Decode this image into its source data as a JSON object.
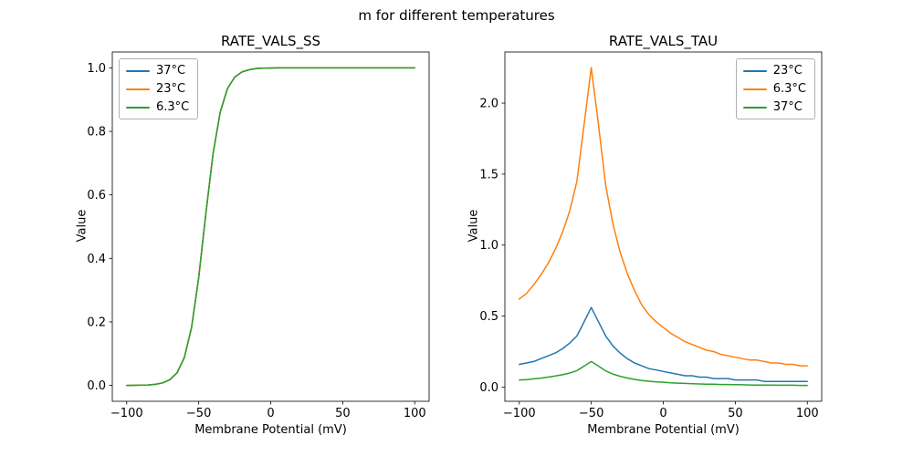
{
  "figure": {
    "suptitle": "m for different temperatures"
  },
  "colors": {
    "blue": "#1f77b4",
    "orange": "#ff7f0e",
    "green": "#2ca02c",
    "axes": "#000000"
  },
  "chart_data": [
    {
      "type": "line",
      "title": "RATE_VALS_SS",
      "xlabel": "Membrane Potential (mV)",
      "ylabel": "Value",
      "legend_position": "upper-left",
      "grid": false,
      "xlim": [
        -110,
        110
      ],
      "ylim": [
        -0.05,
        1.05
      ],
      "xticks": [
        -100,
        -50,
        0,
        50,
        100
      ],
      "xtick_labels": [
        "−100",
        "−50",
        "0",
        "50",
        "100"
      ],
      "yticks": [
        0.0,
        0.2,
        0.4,
        0.6,
        0.8,
        1.0
      ],
      "ytick_labels": [
        "0.0",
        "0.2",
        "0.4",
        "0.6",
        "0.8",
        "1.0"
      ],
      "x": [
        -100,
        -95,
        -90,
        -85,
        -80,
        -75,
        -70,
        -65,
        -60,
        -55,
        -50,
        -45,
        -40,
        -35,
        -30,
        -25,
        -20,
        -15,
        -10,
        -5,
        0,
        5,
        10,
        15,
        20,
        25,
        30,
        35,
        40,
        45,
        50,
        55,
        60,
        65,
        70,
        75,
        80,
        85,
        90,
        95,
        100
      ],
      "series": [
        {
          "name": "37°C",
          "color": "#1f77b4",
          "values": [
            0.0001,
            0.0003,
            0.0007,
            0.0015,
            0.0035,
            0.008,
            0.018,
            0.04,
            0.088,
            0.182,
            0.339,
            0.542,
            0.731,
            0.862,
            0.935,
            0.971,
            0.987,
            0.994,
            0.998,
            0.999,
            0.9995,
            1.0,
            1.0,
            1.0,
            1.0,
            1.0,
            1.0,
            1.0,
            1.0,
            1.0,
            1.0,
            1.0,
            1.0,
            1.0,
            1.0,
            1.0,
            1.0,
            1.0,
            1.0,
            1.0,
            1.0
          ]
        },
        {
          "name": "23°C",
          "color": "#ff7f0e",
          "values": [
            0.0001,
            0.0003,
            0.0007,
            0.0015,
            0.0035,
            0.008,
            0.018,
            0.04,
            0.088,
            0.182,
            0.339,
            0.542,
            0.731,
            0.862,
            0.935,
            0.971,
            0.987,
            0.994,
            0.998,
            0.999,
            0.9995,
            1.0,
            1.0,
            1.0,
            1.0,
            1.0,
            1.0,
            1.0,
            1.0,
            1.0,
            1.0,
            1.0,
            1.0,
            1.0,
            1.0,
            1.0,
            1.0,
            1.0,
            1.0,
            1.0,
            1.0
          ]
        },
        {
          "name": "6.3°C",
          "color": "#2ca02c",
          "values": [
            0.0001,
            0.0003,
            0.0007,
            0.0015,
            0.0035,
            0.008,
            0.018,
            0.04,
            0.088,
            0.182,
            0.339,
            0.542,
            0.731,
            0.862,
            0.935,
            0.971,
            0.987,
            0.994,
            0.998,
            0.999,
            0.9995,
            1.0,
            1.0,
            1.0,
            1.0,
            1.0,
            1.0,
            1.0,
            1.0,
            1.0,
            1.0,
            1.0,
            1.0,
            1.0,
            1.0,
            1.0,
            1.0,
            1.0,
            1.0,
            1.0,
            1.0
          ]
        }
      ],
      "note": "All three temperature curves overlap; green (6.3°C) drawn on top"
    },
    {
      "type": "line",
      "title": "RATE_VALS_TAU",
      "xlabel": "Membrane Potential (mV)",
      "ylabel": "Value",
      "legend_position": "upper-right",
      "grid": false,
      "xlim": [
        -110,
        110
      ],
      "ylim": [
        -0.1,
        2.36
      ],
      "xticks": [
        -100,
        -50,
        0,
        50,
        100
      ],
      "xtick_labels": [
        "−100",
        "−50",
        "0",
        "50",
        "100"
      ],
      "yticks": [
        0.0,
        0.5,
        1.0,
        1.5,
        2.0
      ],
      "ytick_labels": [
        "0.0",
        "0.5",
        "1.0",
        "1.5",
        "2.0"
      ],
      "x": [
        -100,
        -95,
        -90,
        -85,
        -80,
        -75,
        -70,
        -65,
        -60,
        -55,
        -50,
        -45,
        -40,
        -35,
        -30,
        -25,
        -20,
        -15,
        -10,
        -5,
        0,
        5,
        10,
        15,
        20,
        25,
        30,
        35,
        40,
        45,
        50,
        55,
        60,
        65,
        70,
        75,
        80,
        85,
        90,
        95,
        100
      ],
      "series": [
        {
          "name": "23°C",
          "color": "#1f77b4",
          "values": [
            0.16,
            0.17,
            0.18,
            0.2,
            0.22,
            0.24,
            0.27,
            0.31,
            0.36,
            0.46,
            0.56,
            0.46,
            0.36,
            0.29,
            0.24,
            0.2,
            0.17,
            0.15,
            0.13,
            0.12,
            0.11,
            0.1,
            0.09,
            0.08,
            0.08,
            0.07,
            0.07,
            0.06,
            0.06,
            0.06,
            0.05,
            0.05,
            0.05,
            0.05,
            0.04,
            0.04,
            0.04,
            0.04,
            0.04,
            0.04,
            0.04
          ]
        },
        {
          "name": "6.3°C",
          "color": "#ff7f0e",
          "values": [
            0.62,
            0.66,
            0.72,
            0.79,
            0.87,
            0.97,
            1.09,
            1.24,
            1.45,
            1.85,
            2.25,
            1.85,
            1.42,
            1.15,
            0.95,
            0.8,
            0.68,
            0.58,
            0.51,
            0.46,
            0.42,
            0.38,
            0.35,
            0.32,
            0.3,
            0.28,
            0.26,
            0.25,
            0.23,
            0.22,
            0.21,
            0.2,
            0.19,
            0.19,
            0.18,
            0.17,
            0.17,
            0.16,
            0.16,
            0.15,
            0.15
          ]
        },
        {
          "name": "37°C",
          "color": "#2ca02c",
          "values": [
            0.05,
            0.053,
            0.058,
            0.063,
            0.07,
            0.078,
            0.087,
            0.099,
            0.116,
            0.148,
            0.18,
            0.148,
            0.114,
            0.092,
            0.076,
            0.064,
            0.054,
            0.046,
            0.041,
            0.037,
            0.034,
            0.03,
            0.028,
            0.026,
            0.024,
            0.022,
            0.021,
            0.02,
            0.018,
            0.018,
            0.017,
            0.016,
            0.015,
            0.014,
            0.014,
            0.014,
            0.013,
            0.013,
            0.013,
            0.012,
            0.012
          ]
        }
      ]
    }
  ]
}
